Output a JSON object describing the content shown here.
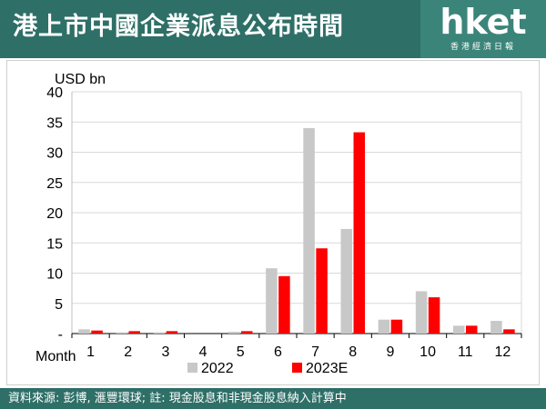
{
  "header": {
    "title": "港上市中國企業派息公布時間",
    "brand": "hket",
    "brand_sub": "香港經濟日報"
  },
  "footer": {
    "source": "資料來源: 彭博, 滙豐環球; 註: 現金股息和非現金股息納入計算中"
  },
  "chart_data": {
    "type": "bar",
    "unit_label": "USD bn",
    "xlabel": "Month",
    "ylim": [
      0,
      40
    ],
    "yticks": [
      0,
      5,
      10,
      15,
      20,
      25,
      30,
      35,
      40
    ],
    "ytick_labels": [
      "-",
      "5",
      "10",
      "15",
      "20",
      "25",
      "30",
      "35",
      "40"
    ],
    "categories": [
      "1",
      "2",
      "3",
      "4",
      "5",
      "6",
      "7",
      "8",
      "9",
      "10",
      "11",
      "12"
    ],
    "series": [
      {
        "name": "2022",
        "color": "#c8c8c8",
        "values": [
          0.7,
          0.2,
          0.2,
          0.0,
          0.3,
          10.8,
          34.0,
          17.3,
          2.3,
          7.0,
          1.3,
          2.1
        ]
      },
      {
        "name": "2023E",
        "color": "#ff0000",
        "values": [
          0.5,
          0.4,
          0.4,
          0.0,
          0.4,
          9.5,
          14.1,
          33.3,
          2.3,
          6.0,
          1.3,
          0.7
        ]
      }
    ],
    "grid": true,
    "legend": "bottom"
  }
}
